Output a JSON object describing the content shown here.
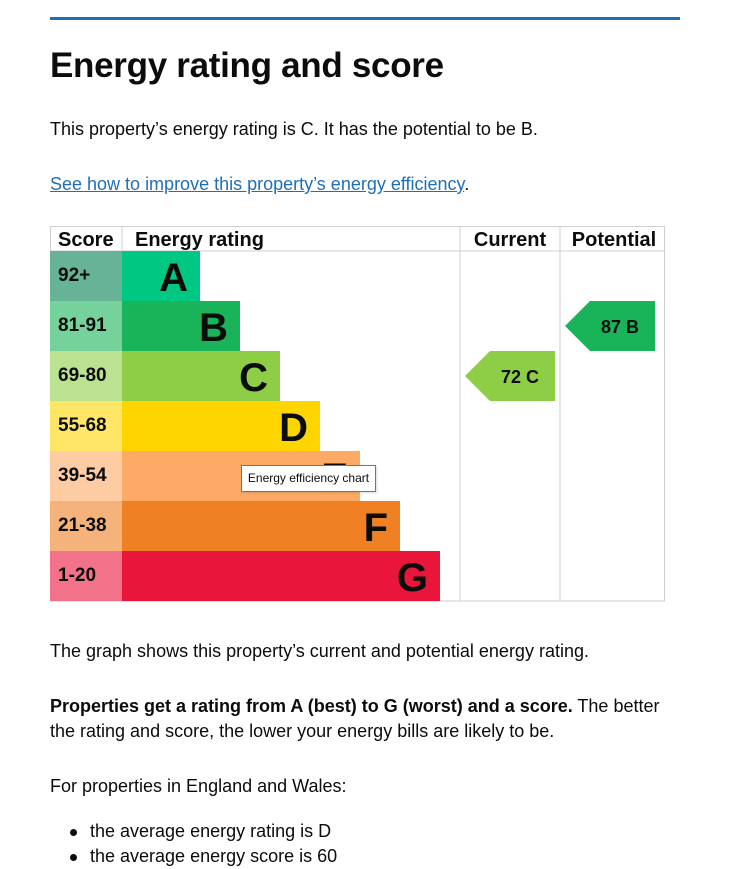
{
  "heading": "Energy rating and score",
  "summary": "This property’s energy rating is C. It has the potential to be B.",
  "improve_link": "See how to improve this property’s energy efficiency",
  "improve_link_suffix": ".",
  "chart_data": {
    "type": "bar",
    "title": "Energy efficiency chart",
    "headers": {
      "score": "Score",
      "rating": "Energy rating",
      "current": "Current",
      "potential": "Potential"
    },
    "bands": [
      {
        "score": "92+",
        "letter": "A",
        "color": "#008054",
        "score_color": "#66b398",
        "bar_color": "#00c781"
      },
      {
        "score": "81-91",
        "letter": "B",
        "color": "#19b459",
        "score_color": "#75d29b",
        "bar_color": "#19b459"
      },
      {
        "score": "69-80",
        "letter": "C",
        "color": "#8dce46",
        "score_color": "#bbe290",
        "bar_color": "#8dce46"
      },
      {
        "score": "55-68",
        "letter": "D",
        "color": "#ffd500",
        "score_color": "#ffe666",
        "bar_color": "#ffd500"
      },
      {
        "score": "39-54",
        "letter": "E",
        "color": "#fcaa65",
        "score_color": "#fdcca3",
        "bar_color": "#fcaa65"
      },
      {
        "score": "21-38",
        "letter": "F",
        "color": "#ef8023",
        "score_color": "#f5b37b",
        "bar_color": "#ef8023"
      },
      {
        "score": "1-20",
        "letter": "G",
        "color": "#e9153b",
        "score_color": "#f27389",
        "bar_color": "#e9153b"
      }
    ],
    "current": {
      "score": 72,
      "letter": "C",
      "label": "72  C",
      "color": "#8dce46"
    },
    "potential": {
      "score": 87,
      "letter": "B",
      "label": "87  B",
      "color": "#19b459"
    }
  },
  "graph_text": "The graph shows this property’s current and potential energy rating.",
  "rating_bold": "Properties get a rating from A (best) to G (worst) and a score.",
  "rating_rest": " The better the rating and score, the lower your energy bills are likely to be.",
  "region_text": "For properties in England and Wales:",
  "bullets": [
    "the average energy rating is D",
    "the average energy score is 60"
  ]
}
